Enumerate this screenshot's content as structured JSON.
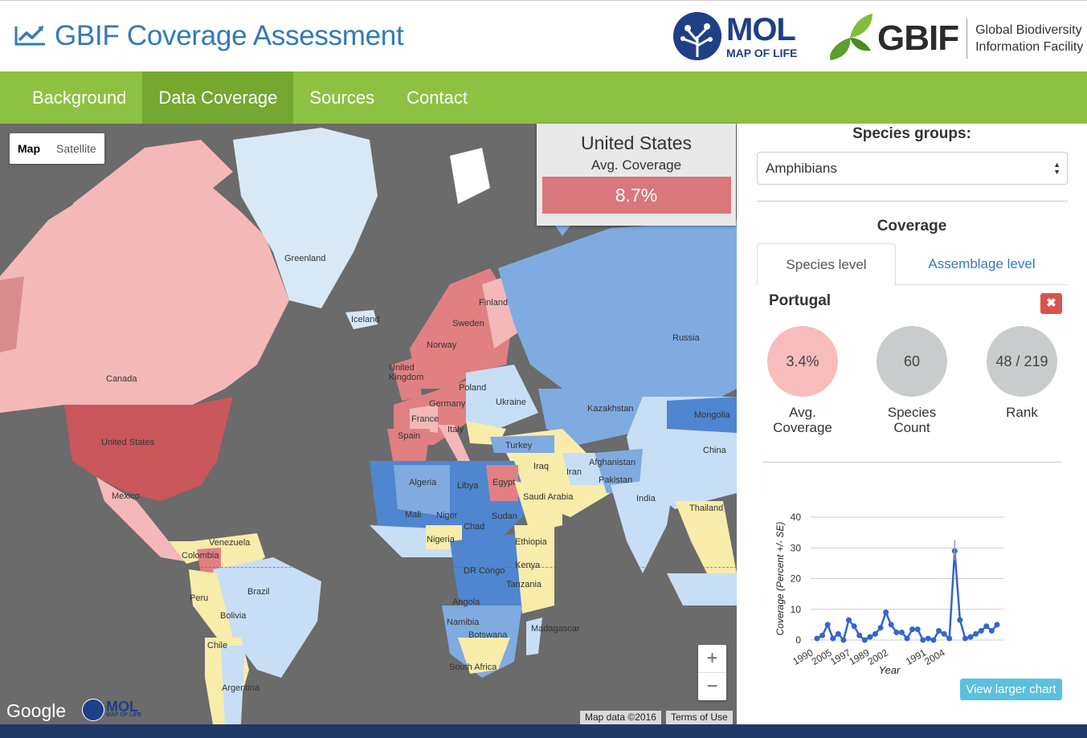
{
  "header": {
    "title": "GBIF Coverage Assessment",
    "mol": {
      "name": "MOL",
      "subtitle": "MAP OF LIFE"
    },
    "gbif": {
      "name": "GBIF",
      "line1": "Global Biodiversity",
      "line2": "Information Facility"
    }
  },
  "nav": {
    "items": [
      {
        "label": "Background"
      },
      {
        "label": "Data Coverage"
      },
      {
        "label": "Sources"
      },
      {
        "label": "Contact"
      }
    ],
    "active_index": 1
  },
  "map": {
    "type_buttons": {
      "map": "Map",
      "satellite": "Satellite"
    },
    "labels": {
      "greenland": "Greenland",
      "iceland": "Iceland",
      "canada": "Canada",
      "united_states": "United States",
      "mexico": "Mexico",
      "venezuela": "Venezuela",
      "colombia": "Colombia",
      "peru": "Peru",
      "brazil": "Brazil",
      "bolivia": "Bolivia",
      "chile": "Chile",
      "argentina": "Argentina",
      "finland": "Finland",
      "sweden": "Sweden",
      "norway": "Norway",
      "united_kingdom": "United Kingdom",
      "poland": "Poland",
      "germany": "Germany",
      "france": "France",
      "italy": "Italy",
      "spain": "Spain",
      "ukraine": "Ukraine",
      "russia": "Russia",
      "kazakhstan": "Kazakhstan",
      "mongolia": "Mongolia",
      "china": "China",
      "turkey": "Turkey",
      "iraq": "Iraq",
      "iran": "Iran",
      "afghanistan": "Afghanistan",
      "pakistan": "Pakistan",
      "india": "India",
      "thailand": "Thailand",
      "algeria": "Algeria",
      "libya": "Libya",
      "egypt": "Egypt",
      "saudi_arabia": "Saudi Arabia",
      "mali": "Mali",
      "niger": "Niger",
      "chad": "Chad",
      "sudan": "Sudan",
      "nigeria": "Nigeria",
      "ethiopia": "Ethiopia",
      "dr_congo": "DR Congo",
      "kenya": "Kenya",
      "tanzania": "Tanzania",
      "angola": "Angola",
      "namibia": "Namibia",
      "botswana": "Botswana",
      "madagascar": "Madagascar",
      "south_africa": "South Africa"
    },
    "google": "Google",
    "attribution": "Map data ©2016",
    "terms": "Terms of Use",
    "zoom_in": "+",
    "zoom_out": "−",
    "colors": {
      "ocean": "#6b6b6b",
      "low_red": "#f4b8b8",
      "mid_red": "#e08083",
      "high_red": "#c9575c",
      "yellow": "#f7ecaa",
      "light_blue": "#c7def5",
      "blue": "#7fabe0",
      "dark_blue": "#4f86cf"
    }
  },
  "hover_box": {
    "country": "United States",
    "label": "Avg. Coverage",
    "value": "8.7%",
    "value_fraction": 0.087,
    "color": "#d9777c"
  },
  "panel": {
    "species_groups_label": "Species groups:",
    "species_group_selected": "Amphibians",
    "coverage_label": "Coverage",
    "tabs": [
      {
        "label": "Species level"
      },
      {
        "label": "Assemblage level"
      }
    ],
    "selected_country": "Portugal",
    "close_icon": "times-icon",
    "stats": [
      {
        "value": "3.4%",
        "label_line1": "Avg.",
        "label_line2": "Coverage",
        "color": "#f8bcbd"
      },
      {
        "value": "60",
        "label_line1": "Species",
        "label_line2": "Count",
        "color": "#c9cccd"
      },
      {
        "value": "48 / 219",
        "label_line1": "Rank",
        "label_line2": "",
        "color": "#c9cccd"
      }
    ],
    "view_larger": "View larger chart"
  },
  "chart_data": {
    "type": "line",
    "xlabel": "Year",
    "ylabel": "Coverage (Percent +/- SE)",
    "ylim": [
      0,
      40
    ],
    "yticks": [
      0,
      10,
      20,
      30,
      40
    ],
    "xtick_labels": [
      "1990",
      "2005",
      "1997",
      "1989",
      "2002",
      "1991",
      "2004"
    ],
    "series": [
      {
        "color": "#3366cc",
        "values": [
          0.5,
          1.5,
          5,
          0.5,
          2,
          0,
          6.5,
          4.5,
          1.5,
          0,
          1,
          2,
          4,
          9,
          5,
          2.5,
          2.5,
          0.5,
          3.5,
          3.5,
          0,
          0.5,
          0,
          3,
          2,
          0.5,
          29,
          6.5,
          0.5,
          1,
          2,
          3,
          4.5,
          3,
          5
        ]
      }
    ]
  }
}
